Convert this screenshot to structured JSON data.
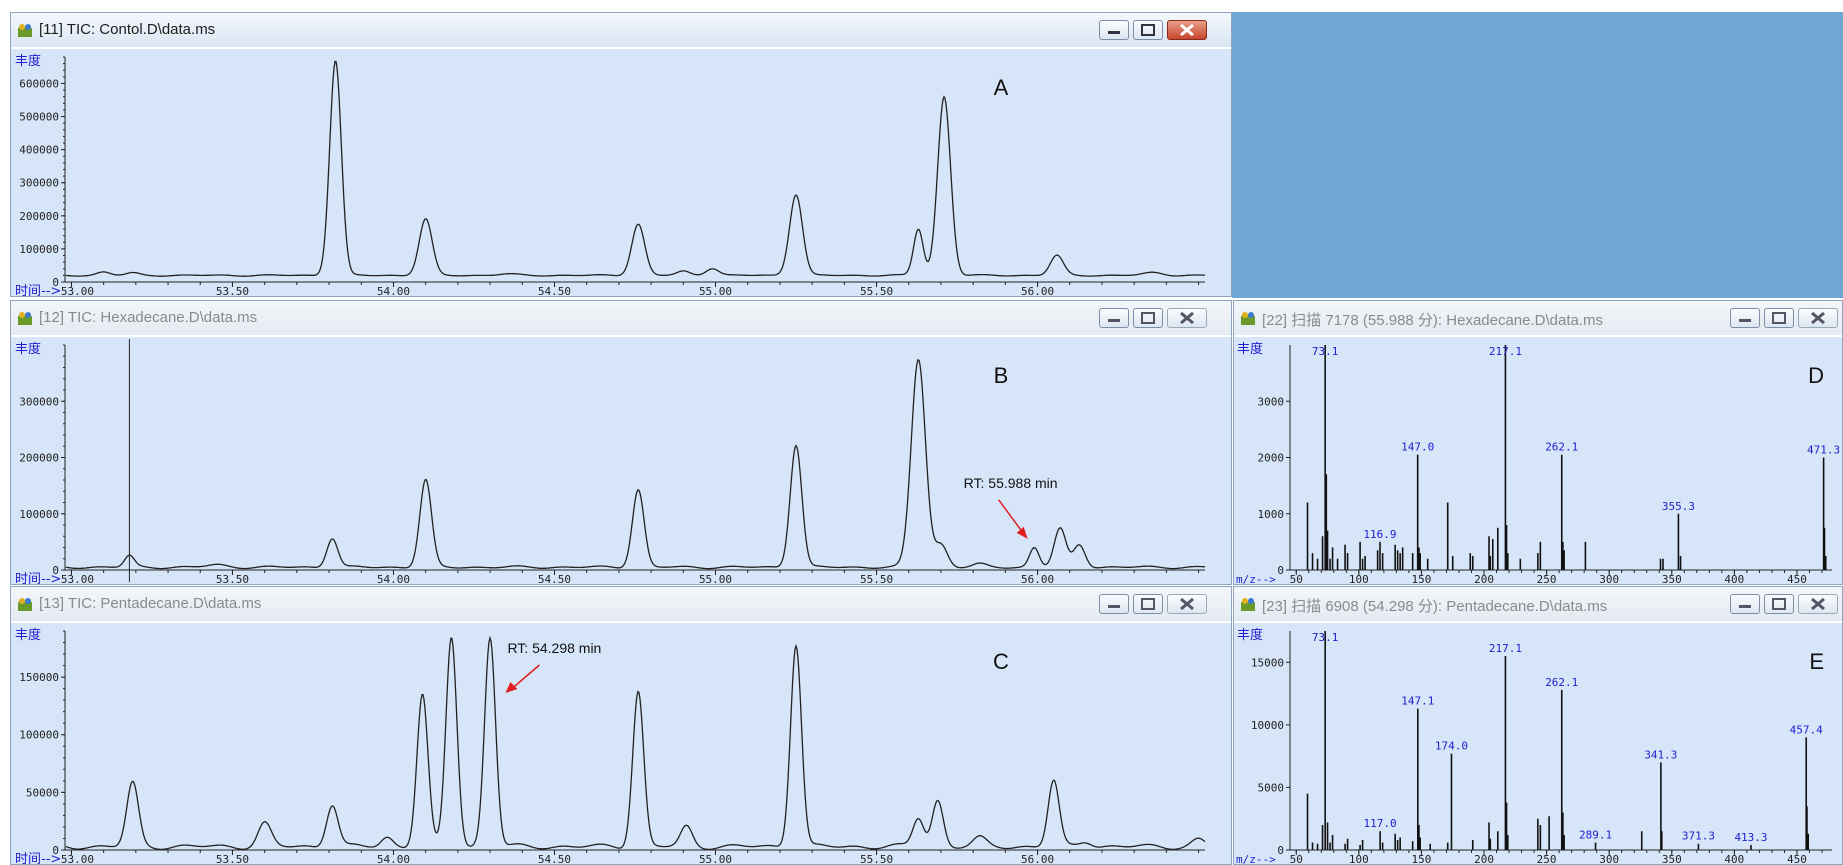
{
  "colors": {
    "plot_bg": "#d7e5f8",
    "trace": "#222222",
    "label_blue": "#2020d0",
    "arrow": "#e02020",
    "desktop": "#6fa6d4"
  },
  "windows": [
    {
      "id": "A",
      "title": "[11] TIC: Contol.D\\data.ms",
      "letter": "A",
      "active": true
    },
    {
      "id": "B",
      "title": "[12] TIC: Hexadecane.D\\data.ms",
      "letter": "B",
      "active": false
    },
    {
      "id": "C",
      "title": "[13] TIC: Pentadecane.D\\data.ms",
      "letter": "C",
      "active": false
    },
    {
      "id": "D",
      "title": "[22] 扫描 7178 (55.988 分): Hexadecane.D\\data.ms",
      "letter": "D",
      "active": false
    },
    {
      "id": "E",
      "title": "[23] 扫描 6908 (54.298 分): Pentadecane.D\\data.ms",
      "letter": "E",
      "active": false
    }
  ],
  "axis_text": {
    "abundance": "丰度",
    "time": "时间-->",
    "mz": "m/z-->"
  },
  "chart_data": [
    {
      "id": "A",
      "type": "line",
      "xlabel": "时间-->",
      "ylabel": "丰度",
      "xlim": [
        52.98,
        56.52
      ],
      "ylim": [
        0,
        680000
      ],
      "xticks": [
        53.0,
        53.5,
        54.0,
        54.5,
        55.0,
        55.5,
        56.0
      ],
      "xtick_labels": [
        "53.00",
        "53.50",
        "54.00",
        "54.50",
        "55.00",
        "55.50",
        "56.00"
      ],
      "yticks": [
        0,
        100000,
        200000,
        300000,
        400000,
        500000,
        600000
      ],
      "ytick_labels": [
        "0",
        "100000",
        "200000",
        "300000",
        "400000",
        "500000",
        "600000"
      ],
      "baseline": 20000,
      "peaks": [
        {
          "x": 53.1,
          "h": 10000,
          "w": 0.02
        },
        {
          "x": 53.19,
          "h": 7000,
          "w": 0.02
        },
        {
          "x": 53.82,
          "h": 650000,
          "w": 0.018
        },
        {
          "x": 54.1,
          "h": 170000,
          "w": 0.02
        },
        {
          "x": 54.35,
          "h": 4000,
          "w": 0.03
        },
        {
          "x": 54.76,
          "h": 155000,
          "w": 0.02
        },
        {
          "x": 54.9,
          "h": 12000,
          "w": 0.02
        },
        {
          "x": 54.99,
          "h": 22000,
          "w": 0.02
        },
        {
          "x": 55.25,
          "h": 245000,
          "w": 0.02
        },
        {
          "x": 55.63,
          "h": 140000,
          "w": 0.015
        },
        {
          "x": 55.71,
          "h": 540000,
          "w": 0.02
        },
        {
          "x": 56.06,
          "h": 60000,
          "w": 0.02
        },
        {
          "x": 56.36,
          "h": 8000,
          "w": 0.03
        }
      ],
      "annotations": []
    },
    {
      "id": "B",
      "type": "line",
      "xlabel": "时间-->",
      "ylabel": "丰度",
      "xlim": [
        52.98,
        56.52
      ],
      "ylim": [
        0,
        400000
      ],
      "xticks": [
        53.0,
        53.5,
        54.0,
        54.5,
        55.0,
        55.5,
        56.0
      ],
      "xtick_labels": [
        "53.00",
        "53.50",
        "54.00",
        "54.50",
        "55.00",
        "55.50",
        "56.00"
      ],
      "yticks": [
        0,
        100000,
        200000,
        300000
      ],
      "ytick_labels": [
        "0",
        "100000",
        "200000",
        "300000"
      ],
      "baseline": 5000,
      "peaks": [
        {
          "x": 53.18,
          "h": 20000,
          "w": 0.015
        },
        {
          "x": 53.45,
          "h": 4000,
          "w": 0.03
        },
        {
          "x": 53.81,
          "h": 52000,
          "w": 0.017
        },
        {
          "x": 54.1,
          "h": 155000,
          "w": 0.018
        },
        {
          "x": 54.76,
          "h": 138000,
          "w": 0.018
        },
        {
          "x": 55.25,
          "h": 218000,
          "w": 0.018
        },
        {
          "x": 55.63,
          "h": 370000,
          "w": 0.022
        },
        {
          "x": 55.7,
          "h": 40000,
          "w": 0.02
        },
        {
          "x": 55.82,
          "h": 5000,
          "w": 0.02
        },
        {
          "x": 55.99,
          "h": 35000,
          "w": 0.015
        },
        {
          "x": 56.07,
          "h": 68000,
          "w": 0.018
        },
        {
          "x": 56.13,
          "h": 40000,
          "w": 0.018
        }
      ],
      "marker_x": 53.18,
      "annotations": [
        {
          "text": "RT: 55.988 min",
          "x": 55.988
        }
      ]
    },
    {
      "id": "C",
      "type": "line",
      "xlabel": "时间-->",
      "ylabel": "丰度",
      "xlim": [
        52.98,
        56.52
      ],
      "ylim": [
        0,
        190000
      ],
      "xticks": [
        53.0,
        53.5,
        54.0,
        54.5,
        55.0,
        55.5,
        56.0
      ],
      "xtick_labels": [
        "53.00",
        "53.50",
        "54.00",
        "54.50",
        "55.00",
        "55.50",
        "56.00"
      ],
      "yticks": [
        0,
        50000,
        100000,
        150000
      ],
      "ytick_labels": [
        "0",
        "50000",
        "100000",
        "150000"
      ],
      "baseline": 3000,
      "peaks": [
        {
          "x": 53.19,
          "h": 55000,
          "w": 0.018
        },
        {
          "x": 53.6,
          "h": 20000,
          "w": 0.02
        },
        {
          "x": 53.81,
          "h": 37000,
          "w": 0.018
        },
        {
          "x": 53.98,
          "h": 8000,
          "w": 0.018
        },
        {
          "x": 54.09,
          "h": 132000,
          "w": 0.017
        },
        {
          "x": 54.18,
          "h": 182000,
          "w": 0.017
        },
        {
          "x": 54.3,
          "h": 182000,
          "w": 0.017
        },
        {
          "x": 54.76,
          "h": 135000,
          "w": 0.017
        },
        {
          "x": 54.91,
          "h": 17000,
          "w": 0.018
        },
        {
          "x": 55.25,
          "h": 176000,
          "w": 0.017
        },
        {
          "x": 55.63,
          "h": 25000,
          "w": 0.017
        },
        {
          "x": 55.69,
          "h": 40000,
          "w": 0.017
        },
        {
          "x": 55.82,
          "h": 7000,
          "w": 0.02
        },
        {
          "x": 56.05,
          "h": 57000,
          "w": 0.017
        },
        {
          "x": 56.15,
          "h": 5000,
          "w": 0.02
        },
        {
          "x": 56.5,
          "h": 6000,
          "w": 0.02
        }
      ],
      "annotations": [
        {
          "text": "RT: 54.298 min",
          "x": 54.298
        }
      ]
    },
    {
      "id": "D",
      "type": "bar",
      "xlabel": "m/z-->",
      "ylabel": "丰度",
      "xlim": [
        45,
        478
      ],
      "ylim": [
        0,
        4000
      ],
      "xticks": [
        50,
        100,
        150,
        200,
        250,
        300,
        350,
        400,
        450
      ],
      "yticks": [
        0,
        1000,
        2000,
        3000
      ],
      "sticks": [
        [
          59,
          1200
        ],
        [
          63,
          300
        ],
        [
          67,
          200
        ],
        [
          71,
          600
        ],
        [
          73.1,
          4000
        ],
        [
          74,
          1700
        ],
        [
          75,
          700
        ],
        [
          77,
          200
        ],
        [
          79,
          400
        ],
        [
          83,
          200
        ],
        [
          89,
          450
        ],
        [
          91,
          300
        ],
        [
          101,
          500
        ],
        [
          103,
          200
        ],
        [
          105,
          250
        ],
        [
          115,
          350
        ],
        [
          116.9,
          500
        ],
        [
          119,
          300
        ],
        [
          129,
          450
        ],
        [
          131,
          350
        ],
        [
          133,
          300
        ],
        [
          135,
          400
        ],
        [
          143,
          300
        ],
        [
          147.0,
          2050
        ],
        [
          148,
          400
        ],
        [
          149,
          300
        ],
        [
          155,
          200
        ],
        [
          171,
          1200
        ],
        [
          175,
          250
        ],
        [
          189,
          300
        ],
        [
          191,
          250
        ],
        [
          204,
          600
        ],
        [
          205,
          250
        ],
        [
          207,
          550
        ],
        [
          211,
          750
        ],
        [
          217.1,
          4000
        ],
        [
          218,
          800
        ],
        [
          219,
          300
        ],
        [
          229,
          200
        ],
        [
          243,
          300
        ],
        [
          245,
          500
        ],
        [
          262.1,
          2050
        ],
        [
          263,
          500
        ],
        [
          264,
          350
        ],
        [
          281,
          500
        ],
        [
          341,
          200
        ],
        [
          343,
          200
        ],
        [
          355.3,
          1000
        ],
        [
          357,
          250
        ],
        [
          471.3,
          2000
        ],
        [
          472,
          750
        ],
        [
          473,
          250
        ]
      ],
      "labels": [
        {
          "mz": 73.1,
          "text": "73.1"
        },
        {
          "mz": 217.1,
          "text": "217.1"
        },
        {
          "mz": 147.0,
          "text": "147.0"
        },
        {
          "mz": 262.1,
          "text": "262.1"
        },
        {
          "mz": 471.3,
          "text": "471.3"
        },
        {
          "mz": 355.3,
          "text": "355.3"
        },
        {
          "mz": 116.9,
          "text": "116.9"
        }
      ]
    },
    {
      "id": "E",
      "type": "bar",
      "xlabel": "m/z-->",
      "ylabel": "丰度",
      "xlim": [
        45,
        478
      ],
      "ylim": [
        0,
        17500
      ],
      "xticks": [
        50,
        100,
        150,
        200,
        250,
        300,
        350,
        400,
        450
      ],
      "yticks": [
        0,
        5000,
        10000,
        15000
      ],
      "sticks": [
        [
          59,
          4500
        ],
        [
          63,
          600
        ],
        [
          67,
          500
        ],
        [
          71,
          2000
        ],
        [
          73.1,
          17500
        ],
        [
          75,
          2200
        ],
        [
          77,
          600
        ],
        [
          79,
          1200
        ],
        [
          89,
          500
        ],
        [
          91,
          900
        ],
        [
          101,
          400
        ],
        [
          103,
          800
        ],
        [
          117.0,
          1500
        ],
        [
          119,
          600
        ],
        [
          129,
          1300
        ],
        [
          131,
          800
        ],
        [
          133,
          1000
        ],
        [
          143,
          700
        ],
        [
          147.1,
          11300
        ],
        [
          148,
          2000
        ],
        [
          149,
          1000
        ],
        [
          157,
          500
        ],
        [
          171,
          600
        ],
        [
          174.0,
          7700
        ],
        [
          191,
          800
        ],
        [
          204,
          2200
        ],
        [
          205,
          900
        ],
        [
          211,
          1500
        ],
        [
          217.1,
          15500
        ],
        [
          218,
          3800
        ],
        [
          219,
          1200
        ],
        [
          243,
          2500
        ],
        [
          245,
          2000
        ],
        [
          252,
          2700
        ],
        [
          262.1,
          12800
        ],
        [
          263,
          3000
        ],
        [
          264,
          1200
        ],
        [
          289.1,
          600
        ],
        [
          326,
          1500
        ],
        [
          341.3,
          7000
        ],
        [
          342,
          1500
        ],
        [
          371.3,
          500
        ],
        [
          413.3,
          400
        ],
        [
          457.4,
          9000
        ],
        [
          458,
          3500
        ],
        [
          459,
          1300
        ]
      ],
      "labels": [
        {
          "mz": 73.1,
          "text": "73.1"
        },
        {
          "mz": 217.1,
          "text": "217.1"
        },
        {
          "mz": 262.1,
          "text": "262.1"
        },
        {
          "mz": 147.1,
          "text": "147.1"
        },
        {
          "mz": 457.4,
          "text": "457.4"
        },
        {
          "mz": 341.3,
          "text": "341.3"
        },
        {
          "mz": 117.0,
          "text": "117.0"
        },
        {
          "mz": 174.0,
          "text": "174.0"
        },
        {
          "mz": 289.1,
          "text": "289.1"
        },
        {
          "mz": 371.3,
          "text": "371.3"
        },
        {
          "mz": 413.3,
          "text": "413.3"
        }
      ]
    }
  ]
}
